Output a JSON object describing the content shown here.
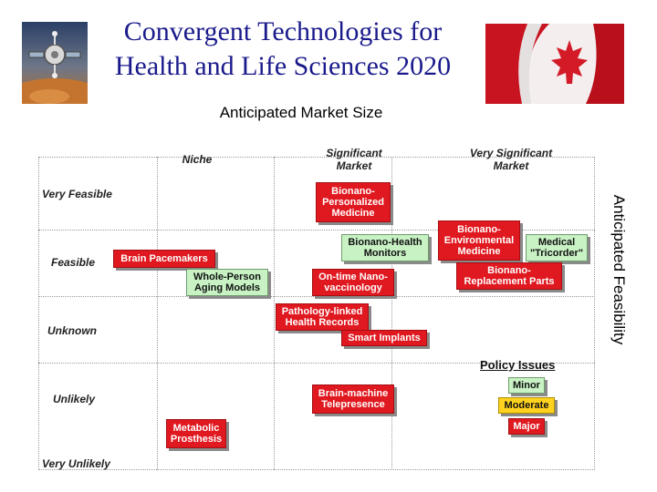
{
  "title": {
    "line1": "Convergent Technologies for",
    "line2": "Health and Life Sciences 2020"
  },
  "logo_left_icon": "satellite-logo-icon",
  "logo_right_icon": "canadian-flag-icon",
  "axis_titles": {
    "market": "Anticipated Market Size",
    "feasibility": "Anticipated Feasibility"
  },
  "columns": [
    {
      "label": "Niche"
    },
    {
      "label": "Significant Market"
    },
    {
      "label": "Very Significant Market"
    }
  ],
  "rows": [
    {
      "label": "Very Feasible"
    },
    {
      "label": "Feasible"
    },
    {
      "label": "Unknown"
    },
    {
      "label": "Unlikely"
    },
    {
      "label": "Very Unlikely"
    }
  ],
  "technologies": [
    {
      "label": "Bionano-Personalized Medicine",
      "policy": "major"
    },
    {
      "label": "Bionano-Environmental Medicine",
      "policy": "major"
    },
    {
      "label": "Medical \"Tricorder\"",
      "policy": "minor"
    },
    {
      "label": "Bionano-Health Monitors",
      "policy": "minor"
    },
    {
      "label": "Brain Pacemakers",
      "policy": "major"
    },
    {
      "label": "Bionano-Replacement Parts",
      "policy": "major"
    },
    {
      "label": "Whole-Person Aging Models",
      "policy": "minor"
    },
    {
      "label": "On-time Nano-vaccinology",
      "policy": "major"
    },
    {
      "label": "Pathology-linked Health Records",
      "policy": "major"
    },
    {
      "label": "Smart Implants",
      "policy": "major"
    },
    {
      "label": "Brain-machine Telepresence",
      "policy": "major"
    },
    {
      "label": "Metabolic Prosthesis",
      "policy": "major"
    }
  ],
  "policy_legend": {
    "title": "Policy Issues",
    "items": [
      {
        "label": "Minor",
        "color": "#c8f2c4"
      },
      {
        "label": "Moderate",
        "color": "#ffd21f"
      },
      {
        "label": "Major",
        "color": "#e0181f"
      }
    ]
  }
}
